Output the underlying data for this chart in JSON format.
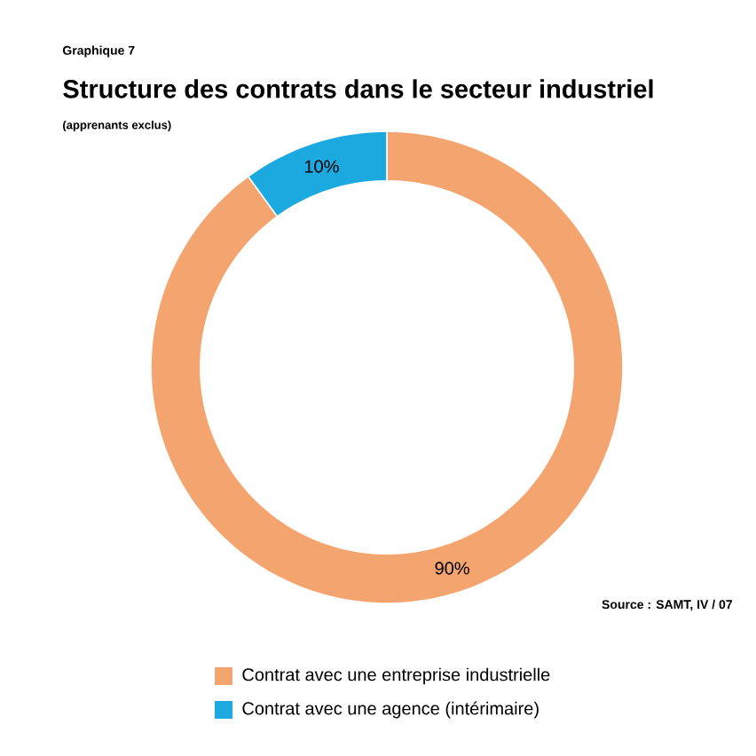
{
  "chart_data": {
    "type": "donut",
    "title": "Structure des contrats dans le secteur industriel",
    "subtitle": "(apprenants exclus)",
    "categories": [
      "Contrat avec une entreprise industrielle",
      "Contrat avec une agence (intérimaire)"
    ],
    "values": [
      90,
      10
    ],
    "value_labels": [
      "90%",
      "10%"
    ],
    "colors": [
      "#f4a46e",
      "#1ba9df"
    ],
    "legend": "bottom",
    "annotations": [
      "Graphique 7",
      "Source : SAMT, IV / 07"
    ]
  }
}
